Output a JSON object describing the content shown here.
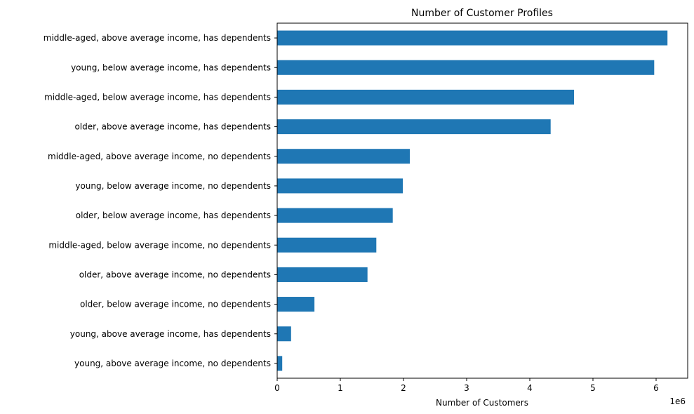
{
  "chart_data": {
    "type": "bar",
    "orientation": "horizontal",
    "title": "Number of Customer Profiles",
    "xlabel": "Number of Customers",
    "ylabel": "",
    "x_scale_label": "1e6",
    "xlim": [
      0,
      6500000
    ],
    "x_ticks": [
      0,
      1000000,
      2000000,
      3000000,
      4000000,
      5000000,
      6000000
    ],
    "x_tick_labels": [
      "0",
      "1",
      "2",
      "3",
      "4",
      "5",
      "6"
    ],
    "grid": false,
    "bar_color": "#1f77b4",
    "categories": [
      "middle-aged, above average income, has dependents",
      "young, below average income, has dependents",
      "middle-aged, below average income, has dependents",
      "older, above average income, has dependents",
      "middle-aged, above average income, no dependents",
      "young, below average income, no dependents",
      "older, below average income, has dependents",
      "middle-aged, below average income, no dependents",
      "older, above average income, no dependents",
      "older, below average income, no dependents",
      "young, above average income, has dependents",
      "young, above average income, no dependents"
    ],
    "values": [
      6180000,
      5970000,
      4700000,
      4330000,
      2100000,
      1990000,
      1830000,
      1570000,
      1430000,
      590000,
      220000,
      80000
    ]
  }
}
